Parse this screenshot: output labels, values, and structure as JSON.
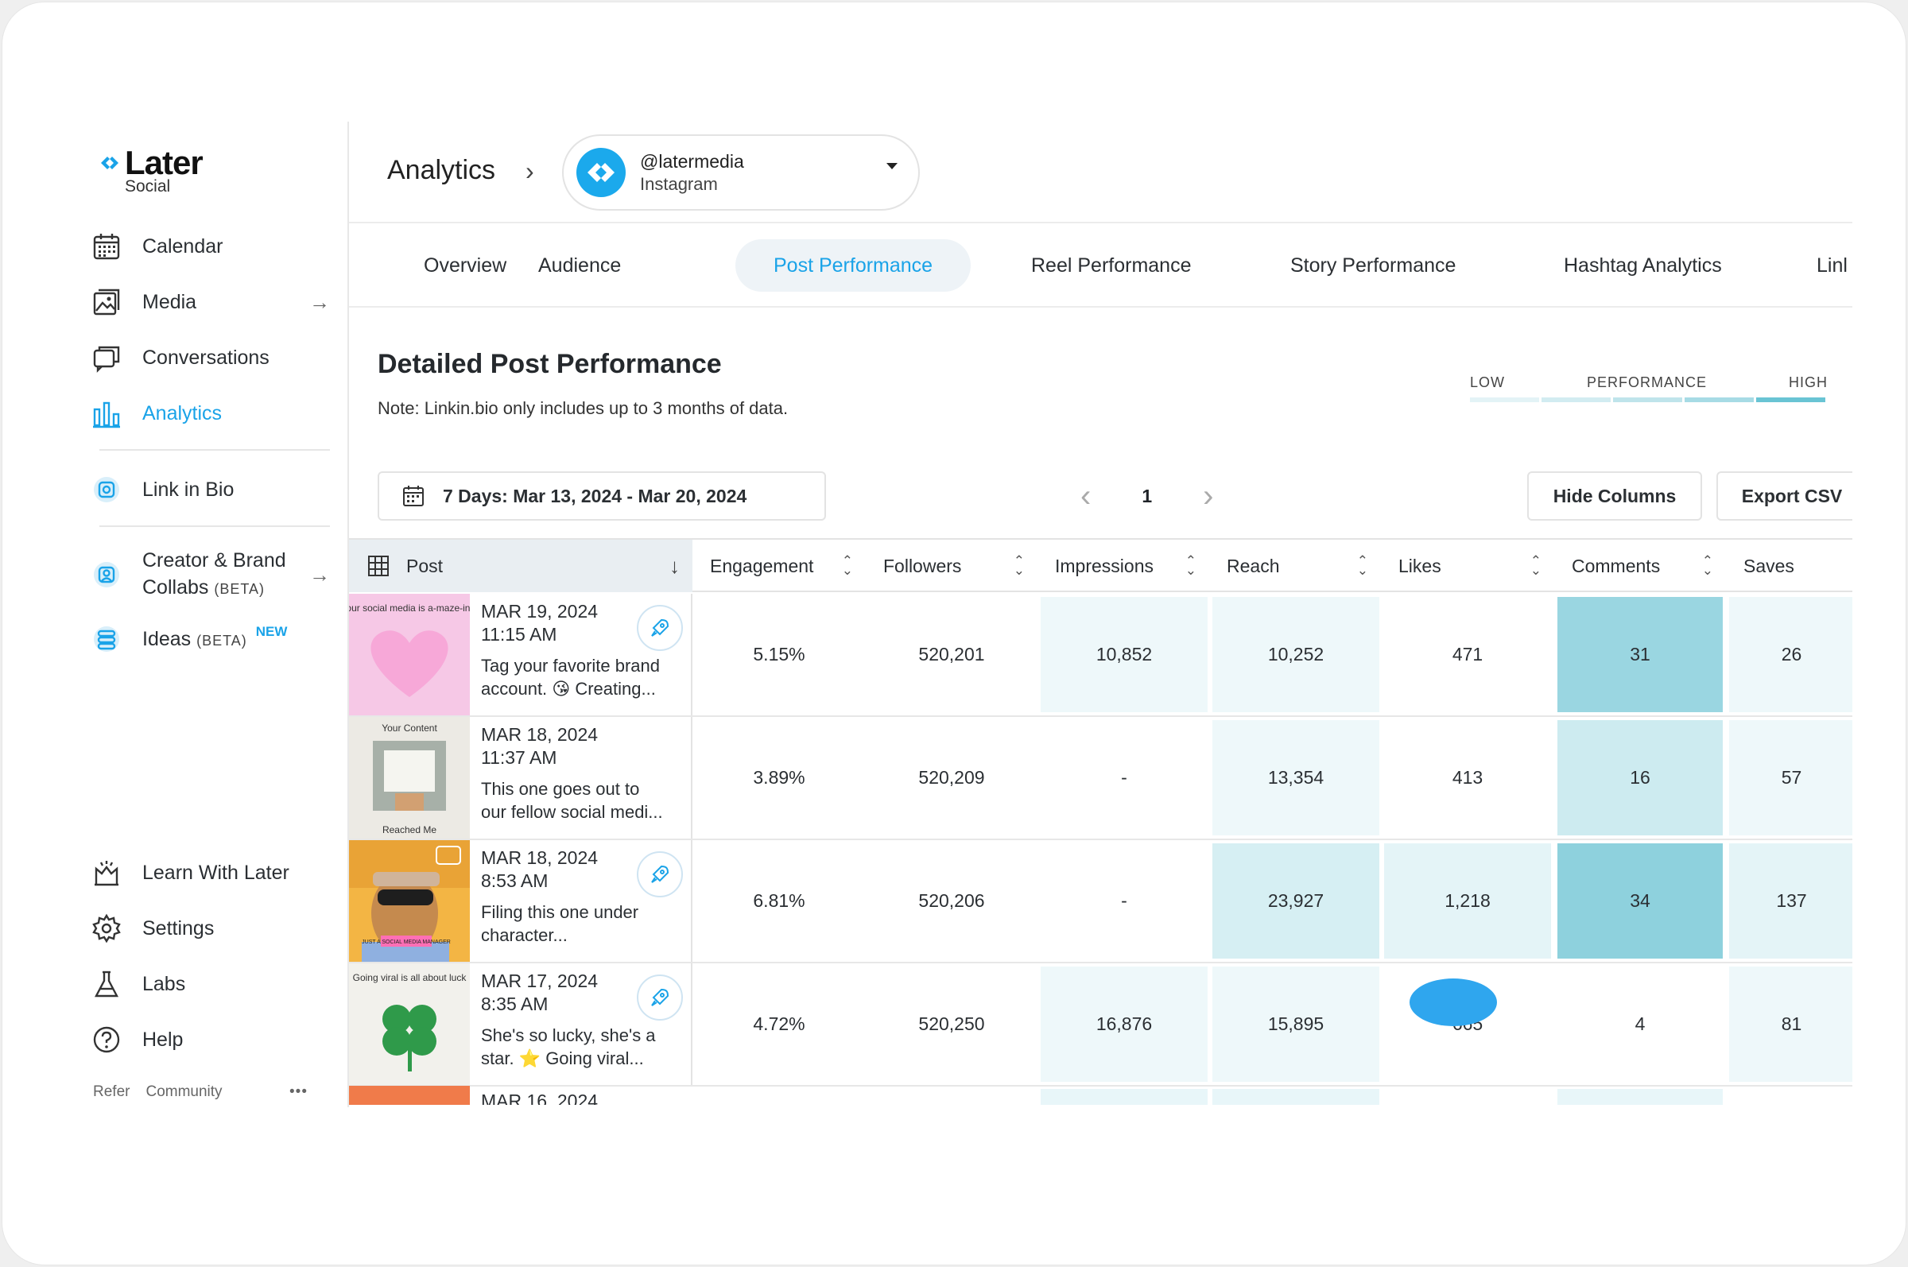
{
  "brand": {
    "name": "Later",
    "sub": "Social",
    "accent": "#1aa3e8"
  },
  "sidebar": {
    "items": [
      {
        "label": "Calendar",
        "icon": "calendar-icon"
      },
      {
        "label": "Media",
        "icon": "image-icon",
        "arrow": "→"
      },
      {
        "label": "Conversations",
        "icon": "chat-icon"
      },
      {
        "label": "Analytics",
        "icon": "bar-chart-icon",
        "active": true
      }
    ],
    "link_in_bio": {
      "label": "Link in Bio",
      "icon": "link-in-bio-icon"
    },
    "creator": {
      "label_line1": "Creator & Brand",
      "label_line2": "Collabs",
      "beta": "(BETA)",
      "arrow": "→",
      "icon": "creator-icon"
    },
    "ideas": {
      "label": "Ideas",
      "beta": "(BETA)",
      "badge": "NEW",
      "icon": "ideas-icon"
    },
    "bottom": [
      {
        "label": "Learn With Later",
        "icon": "learn-icon"
      },
      {
        "label": "Settings",
        "icon": "gear-icon"
      },
      {
        "label": "Labs",
        "icon": "flask-icon"
      },
      {
        "label": "Help",
        "icon": "help-icon"
      }
    ],
    "footer": {
      "refer": "Refer",
      "community": "Community",
      "more": "•••"
    }
  },
  "header": {
    "title": "Analytics",
    "account": {
      "handle": "@latermedia",
      "network": "Instagram"
    }
  },
  "tabs": [
    {
      "label": "Overview"
    },
    {
      "label": "Audience"
    },
    {
      "label": "Post Performance",
      "active": true
    },
    {
      "label": "Reel Performance"
    },
    {
      "label": "Story Performance"
    },
    {
      "label": "Hashtag Analytics"
    },
    {
      "label": "Linl"
    }
  ],
  "section": {
    "title": "Detailed Post Performance",
    "note": "Note: Linkin.bio only includes up to 3 months of data."
  },
  "legend": {
    "low": "LOW",
    "mid": "PERFORMANCE",
    "high": "HIGH",
    "colors": [
      "#e3f3f6",
      "#d2ecf1",
      "#bfe4eb",
      "#a7dbe5",
      "#69c4d4"
    ]
  },
  "controls": {
    "date_range": "7 Days: Mar 13, 2024 - Mar 20, 2024",
    "page": "1",
    "hide_columns": "Hide Columns",
    "export_csv": "Export CSV"
  },
  "table": {
    "columns": [
      "Post",
      "Engagement",
      "Followers",
      "Impressions",
      "Reach",
      "Likes",
      "Comments",
      "Saves"
    ],
    "rows": [
      {
        "date": "MAR 19, 2024",
        "time": "11:15 AM",
        "caption1": "Tag your favorite brand",
        "caption2": "account. 😘  Creating...",
        "thumb_text": "Your social media is a-maze-ing!",
        "boost": true,
        "engagement": "5.15%",
        "followers": "520,201",
        "impressions": "10,852",
        "reach": "10,252",
        "likes": "471",
        "comments": "31",
        "saves": "26",
        "levels": {
          "impressions": "#eef8fa",
          "reach": "#eef8fa",
          "likes": "#ffffff",
          "comments": "#9ad6e1",
          "saves": "#eef8fa"
        }
      },
      {
        "date": "MAR 18, 2024",
        "time": "11:37 AM",
        "caption1": "This one goes out to",
        "caption2": "our fellow social medi...",
        "thumb_text": "Your Content",
        "thumb_text2": "Reached Me",
        "boost": false,
        "engagement": "3.89%",
        "followers": "520,209",
        "impressions": "-",
        "reach": "13,354",
        "likes": "413",
        "comments": "16",
        "saves": "57",
        "levels": {
          "impressions": "#ffffff",
          "reach": "#eef8fa",
          "likes": "#ffffff",
          "comments": "#cdebf0",
          "saves": "#eef8fa"
        }
      },
      {
        "date": "MAR 18, 2024",
        "time": "8:53 AM",
        "caption1": "Filing this one under",
        "caption2": "character...",
        "thumb_text": "JUST A SOCIAL MEDIA MANAGER",
        "boost": true,
        "engagement": "6.81%",
        "followers": "520,206",
        "impressions": "-",
        "reach": "23,927",
        "likes": "1,218",
        "comments": "34",
        "saves": "137",
        "levels": {
          "impressions": "#ffffff",
          "reach": "#d6eff3",
          "likes": "#e4f4f7",
          "comments": "#8ed1dd",
          "saves": "#e4f4f7"
        }
      },
      {
        "date": "MAR 17, 2024",
        "time": "8:35 AM",
        "caption1": "She's so lucky, she's a",
        "caption2": "star. ⭐  Going viral...",
        "thumb_text": "Going viral is all about luck",
        "boost": true,
        "engagement": "4.72%",
        "followers": "520,250",
        "impressions": "16,876",
        "reach": "15,895",
        "likes": "665",
        "comments": "4",
        "saves": "81",
        "levels": {
          "impressions": "#eef8fa",
          "reach": "#eef8fa",
          "likes": "#ffffff",
          "comments": "#ffffff",
          "saves": "#eef8fa"
        }
      }
    ],
    "partial_date": "MAR 16, 2024"
  }
}
